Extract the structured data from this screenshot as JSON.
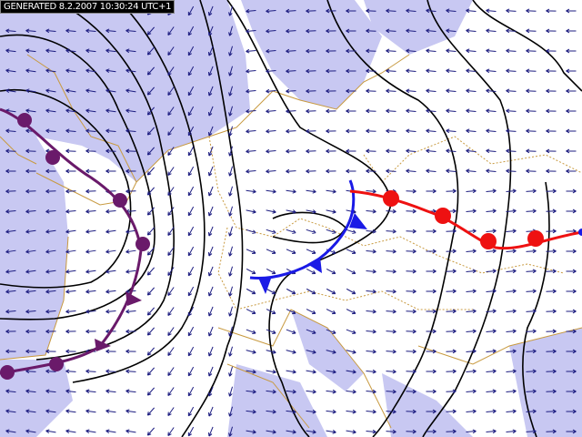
{
  "header": {
    "title": "GENERATED 8.2.2007 10:30:24 UTC+1"
  }
}
